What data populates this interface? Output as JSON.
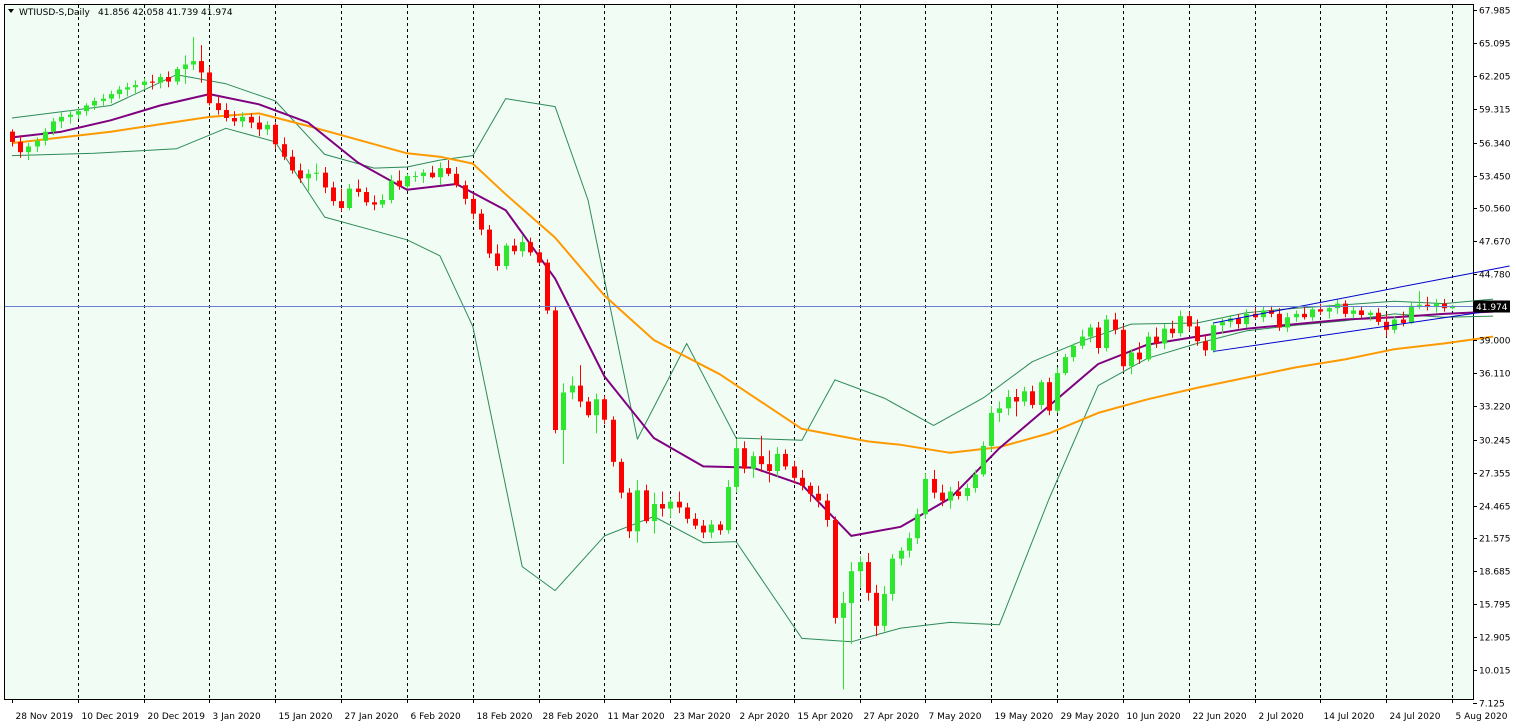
{
  "header": {
    "symbol": "WTIUSD-S,Daily",
    "ohlc": "41.856 42.058 41.739 41.974"
  },
  "colors": {
    "background": "#f0fcf4",
    "bull_candle": "#2ee62e",
    "bear_candle": "#ff0000",
    "ma_fast": "#800080",
    "ma_slow": "#ff9900",
    "bollinger": "#2e8b57",
    "trendline": "#0000cd",
    "price_line": "#6a7fd0",
    "price_label_bg": "#000000"
  },
  "chart_data": {
    "type": "candlestick",
    "symbol": "WTIUSD-S",
    "timeframe": "Daily",
    "last_price": "41.974",
    "ylim": [
      7.125,
      67.985
    ],
    "y_ticks": [
      "67.985",
      "65.095",
      "62.205",
      "59.315",
      "56.340",
      "53.450",
      "50.560",
      "47.670",
      "44.780",
      "41.974",
      "39.000",
      "36.110",
      "33.220",
      "30.245",
      "27.355",
      "24.465",
      "21.575",
      "18.685",
      "15.795",
      "12.905",
      "10.015",
      "7.125"
    ],
    "x_ticks": [
      "28 Nov 2019",
      "10 Dec 2019",
      "20 Dec 2019",
      "3 Jan 2020",
      "15 Jan 2020",
      "27 Jan 2020",
      "6 Feb 2020",
      "18 Feb 2020",
      "28 Feb 2020",
      "11 Mar 2020",
      "23 Mar 2020",
      "2 Apr 2020",
      "15 Apr 2020",
      "27 Apr 2020",
      "7 May 2020",
      "19 May 2020",
      "29 May 2020",
      "10 Jun 2020",
      "22 Jun 2020",
      "2 Jul 2020",
      "14 Jul 2020",
      "24 Jul 2020",
      "5 Aug 2020"
    ],
    "ohlc": [
      [
        57.3,
        57.5,
        56.0,
        56.4
      ],
      [
        56.4,
        57.0,
        55.0,
        55.5
      ],
      [
        55.5,
        56.3,
        54.8,
        56.0
      ],
      [
        56.0,
        56.8,
        55.5,
        56.5
      ],
      [
        56.5,
        57.6,
        56.1,
        57.3
      ],
      [
        57.3,
        58.5,
        57.0,
        58.2
      ],
      [
        58.2,
        59.0,
        57.6,
        58.6
      ],
      [
        58.6,
        59.2,
        58.0,
        58.8
      ],
      [
        58.8,
        59.4,
        58.4,
        59.1
      ],
      [
        59.1,
        59.8,
        58.7,
        59.6
      ],
      [
        59.6,
        60.3,
        59.2,
        60.0
      ],
      [
        60.0,
        60.6,
        59.5,
        60.2
      ],
      [
        60.2,
        60.9,
        59.8,
        60.6
      ],
      [
        60.6,
        61.3,
        60.2,
        61.0
      ],
      [
        61.0,
        61.6,
        60.4,
        61.2
      ],
      [
        61.2,
        61.8,
        60.6,
        61.4
      ],
      [
        61.4,
        62.0,
        61.0,
        61.7
      ],
      [
        61.7,
        62.3,
        61.0,
        61.6
      ],
      [
        61.6,
        62.4,
        61.1,
        62.1
      ],
      [
        62.1,
        62.6,
        61.2,
        61.7
      ],
      [
        61.7,
        63.0,
        61.4,
        62.8
      ],
      [
        62.8,
        64.0,
        61.5,
        63.2
      ],
      [
        63.2,
        65.6,
        62.7,
        63.5
      ],
      [
        63.5,
        64.9,
        61.6,
        62.5
      ],
      [
        62.5,
        63.0,
        59.6,
        59.8
      ],
      [
        59.8,
        60.4,
        58.8,
        59.2
      ],
      [
        59.2,
        59.8,
        58.2,
        58.5
      ],
      [
        58.5,
        59.1,
        57.8,
        58.2
      ],
      [
        58.2,
        59.0,
        57.7,
        58.6
      ],
      [
        58.6,
        58.9,
        57.6,
        58.1
      ],
      [
        58.1,
        58.7,
        56.9,
        57.5
      ],
      [
        57.5,
        58.2,
        57.0,
        57.9
      ],
      [
        57.9,
        58.1,
        55.8,
        56.2
      ],
      [
        56.2,
        56.8,
        54.8,
        55.1
      ],
      [
        55.1,
        55.7,
        53.6,
        53.9
      ],
      [
        53.9,
        54.5,
        52.8,
        53.2
      ],
      [
        53.2,
        54.0,
        52.1,
        53.6
      ],
      [
        53.6,
        54.5,
        53.0,
        53.7
      ],
      [
        53.7,
        54.2,
        51.9,
        52.4
      ],
      [
        52.4,
        52.9,
        50.8,
        51.2
      ],
      [
        51.2,
        52.3,
        50.3,
        50.6
      ],
      [
        50.6,
        52.7,
        50.4,
        52.3
      ],
      [
        52.3,
        53.1,
        51.6,
        52.0
      ],
      [
        52.0,
        52.4,
        50.8,
        51.1
      ],
      [
        51.1,
        51.7,
        50.4,
        50.9
      ],
      [
        50.9,
        51.8,
        50.6,
        51.3
      ],
      [
        51.3,
        53.5,
        51.0,
        53.0
      ],
      [
        53.0,
        53.9,
        52.2,
        52.5
      ],
      [
        52.5,
        53.6,
        52.3,
        53.4
      ],
      [
        53.4,
        53.8,
        52.9,
        53.4
      ],
      [
        53.4,
        54.0,
        52.8,
        53.7
      ],
      [
        53.7,
        54.3,
        53.2,
        53.3
      ],
      [
        53.3,
        54.6,
        52.6,
        54.1
      ],
      [
        54.1,
        54.8,
        53.4,
        53.6
      ],
      [
        53.6,
        54.2,
        52.4,
        52.6
      ],
      [
        52.6,
        53.0,
        50.9,
        51.4
      ],
      [
        51.4,
        51.8,
        49.6,
        50.1
      ],
      [
        50.1,
        50.5,
        48.2,
        48.7
      ],
      [
        48.7,
        49.1,
        46.2,
        46.6
      ],
      [
        46.6,
        47.4,
        45.1,
        45.5
      ],
      [
        45.5,
        47.5,
        45.2,
        47.3
      ],
      [
        47.3,
        47.9,
        46.5,
        46.8
      ],
      [
        46.8,
        48.2,
        46.3,
        47.6
      ],
      [
        47.6,
        48.0,
        46.4,
        46.7
      ],
      [
        46.7,
        47.0,
        45.6,
        45.8
      ],
      [
        45.8,
        46.1,
        41.3,
        41.6
      ],
      [
        41.6,
        42.0,
        30.8,
        31.1
      ],
      [
        31.1,
        35.2,
        28.1,
        34.4
      ],
      [
        34.4,
        35.8,
        33.8,
        35.0
      ],
      [
        35.0,
        36.8,
        33.1,
        33.6
      ],
      [
        33.6,
        34.0,
        32.2,
        32.4
      ],
      [
        32.4,
        34.3,
        30.8,
        33.8
      ],
      [
        33.8,
        34.1,
        31.6,
        32.0
      ],
      [
        32.0,
        32.3,
        27.9,
        28.3
      ],
      [
        28.3,
        28.6,
        25.1,
        25.6
      ],
      [
        25.6,
        26.0,
        21.6,
        22.2
      ],
      [
        22.2,
        26.7,
        21.2,
        25.8
      ],
      [
        25.8,
        26.3,
        22.9,
        23.1
      ],
      [
        23.1,
        25.6,
        22.0,
        24.6
      ],
      [
        24.6,
        25.7,
        23.5,
        24.2
      ],
      [
        24.2,
        25.1,
        23.4,
        24.8
      ],
      [
        24.8,
        25.7,
        23.8,
        24.3
      ],
      [
        24.3,
        24.7,
        22.9,
        23.3
      ],
      [
        23.3,
        23.8,
        22.4,
        22.7
      ],
      [
        22.7,
        23.2,
        21.6,
        22.1
      ],
      [
        22.1,
        23.2,
        21.6,
        22.8
      ],
      [
        22.8,
        23.1,
        21.9,
        22.3
      ],
      [
        22.3,
        26.7,
        22.0,
        26.1
      ],
      [
        26.1,
        30.3,
        25.6,
        29.5
      ],
      [
        29.5,
        30.1,
        27.3,
        27.7
      ],
      [
        27.7,
        29.2,
        26.9,
        28.8
      ],
      [
        28.8,
        30.6,
        27.4,
        28.1
      ],
      [
        28.1,
        29.3,
        26.5,
        27.5
      ],
      [
        27.5,
        29.6,
        27.0,
        29.0
      ],
      [
        29.0,
        29.4,
        27.6,
        27.9
      ],
      [
        27.9,
        28.4,
        26.4,
        26.9
      ],
      [
        26.9,
        27.6,
        25.8,
        26.2
      ],
      [
        26.2,
        26.5,
        24.8,
        25.5
      ],
      [
        25.5,
        26.2,
        24.3,
        24.9
      ],
      [
        24.9,
        25.5,
        22.6,
        23.2
      ],
      [
        23.2,
        23.5,
        14.1,
        14.6
      ],
      [
        14.6,
        16.9,
        8.3,
        15.9
      ],
      [
        15.9,
        19.5,
        12.3,
        18.7
      ],
      [
        18.7,
        20.0,
        17.2,
        19.5
      ],
      [
        19.5,
        20.3,
        16.1,
        16.8
      ],
      [
        16.8,
        17.5,
        13.0,
        13.9
      ],
      [
        13.9,
        17.4,
        13.4,
        16.7
      ],
      [
        16.7,
        20.2,
        16.1,
        19.8
      ],
      [
        19.8,
        20.8,
        19.2,
        20.5
      ],
      [
        20.5,
        22.1,
        19.9,
        21.6
      ],
      [
        21.6,
        24.2,
        21.1,
        23.7
      ],
      [
        23.7,
        27.3,
        23.3,
        26.8
      ],
      [
        26.8,
        27.6,
        25.1,
        25.6
      ],
      [
        25.6,
        26.3,
        24.4,
        24.9
      ],
      [
        24.9,
        26.1,
        24.2,
        25.7
      ],
      [
        25.7,
        26.6,
        25.0,
        25.3
      ],
      [
        25.3,
        26.4,
        24.9,
        26.0
      ],
      [
        26.0,
        27.6,
        25.6,
        27.2
      ],
      [
        27.2,
        30.1,
        27.0,
        29.7
      ],
      [
        29.7,
        33.2,
        29.2,
        32.6
      ],
      [
        32.6,
        33.6,
        31.8,
        33.0
      ],
      [
        33.0,
        34.6,
        32.4,
        34.0
      ],
      [
        34.0,
        34.7,
        32.3,
        33.6
      ],
      [
        33.6,
        34.9,
        33.2,
        34.5
      ],
      [
        34.5,
        35.0,
        33.0,
        33.3
      ],
      [
        33.3,
        35.5,
        32.9,
        35.3
      ],
      [
        35.3,
        35.7,
        32.4,
        32.8
      ],
      [
        32.8,
        36.6,
        32.6,
        36.1
      ],
      [
        36.1,
        37.8,
        35.9,
        37.5
      ],
      [
        37.5,
        38.7,
        37.1,
        38.5
      ],
      [
        38.5,
        39.9,
        38.2,
        39.3
      ],
      [
        39.3,
        40.4,
        38.8,
        40.1
      ],
      [
        40.1,
        40.6,
        37.8,
        38.3
      ],
      [
        38.3,
        41.2,
        38.0,
        40.8
      ],
      [
        40.8,
        41.4,
        39.5,
        39.9
      ],
      [
        39.9,
        40.3,
        36.3,
        36.7
      ],
      [
        36.7,
        38.2,
        36.0,
        37.9
      ],
      [
        37.9,
        38.8,
        36.9,
        37.3
      ],
      [
        37.3,
        39.7,
        37.1,
        39.3
      ],
      [
        39.3,
        40.1,
        38.3,
        38.7
      ],
      [
        38.7,
        40.4,
        38.2,
        40.0
      ],
      [
        40.0,
        40.7,
        39.2,
        39.6
      ],
      [
        39.6,
        41.6,
        39.3,
        41.1
      ],
      [
        41.1,
        41.5,
        39.8,
        40.2
      ],
      [
        40.2,
        40.8,
        38.5,
        38.9
      ],
      [
        38.9,
        39.5,
        37.6,
        38.1
      ],
      [
        38.1,
        40.6,
        37.9,
        40.3
      ],
      [
        40.3,
        41.0,
        39.6,
        40.6
      ],
      [
        40.6,
        41.2,
        40.1,
        40.9
      ],
      [
        40.9,
        41.3,
        40.0,
        40.4
      ],
      [
        40.4,
        41.7,
        40.1,
        41.3
      ],
      [
        41.3,
        41.8,
        40.8,
        41.0
      ],
      [
        41.0,
        41.9,
        40.6,
        41.6
      ],
      [
        41.6,
        42.0,
        41.0,
        41.3
      ],
      [
        41.3,
        41.8,
        39.8,
        40.1
      ],
      [
        40.1,
        41.4,
        39.7,
        41.0
      ],
      [
        41.0,
        41.6,
        40.6,
        41.3
      ],
      [
        41.3,
        41.9,
        40.8,
        41.0
      ],
      [
        41.0,
        42.0,
        40.7,
        41.7
      ],
      [
        41.7,
        42.2,
        41.2,
        41.5
      ],
      [
        41.5,
        42.1,
        40.9,
        41.8
      ],
      [
        41.8,
        42.6,
        41.3,
        42.2
      ],
      [
        42.2,
        42.5,
        41.0,
        41.3
      ],
      [
        41.3,
        41.9,
        40.9,
        41.6
      ],
      [
        41.6,
        41.9,
        40.9,
        41.2
      ],
      [
        41.2,
        41.6,
        40.7,
        41.4
      ],
      [
        41.4,
        41.8,
        40.3,
        40.6
      ],
      [
        40.6,
        41.3,
        39.3,
        39.9
      ],
      [
        39.9,
        41.1,
        39.6,
        40.8
      ],
      [
        40.8,
        41.5,
        40.2,
        40.5
      ],
      [
        40.5,
        42.3,
        40.4,
        42.0
      ],
      [
        42.0,
        43.3,
        41.7,
        42.1
      ],
      [
        42.1,
        42.8,
        41.6,
        41.9
      ],
      [
        41.9,
        42.6,
        41.4,
        42.2
      ],
      [
        42.2,
        42.6,
        41.5,
        41.8
      ],
      [
        41.8,
        42.1,
        41.7,
        41.97
      ]
    ],
    "indicators": [
      {
        "id": "ma_fast",
        "x": [
          0,
          6,
          12,
          18,
          24,
          30,
          36,
          42,
          48,
          54,
          60,
          66,
          72,
          78,
          84,
          90,
          96,
          102,
          108,
          114,
          120,
          126,
          132,
          138,
          144,
          150,
          156,
          162,
          168,
          174,
          180
        ],
        "y": [
          56.8,
          57.3,
          58.3,
          59.6,
          60.6,
          59.7,
          58.1,
          54.6,
          52.2,
          52.7,
          50.4,
          44.4,
          35.8,
          30.4,
          27.9,
          27.8,
          26.3,
          21.8,
          22.6,
          25.1,
          29.5,
          33.2,
          36.9,
          38.6,
          39.3,
          40.0,
          40.4,
          40.8,
          41.0,
          41.3,
          41.5
        ]
      },
      {
        "id": "ma_slow",
        "x": [
          0,
          12,
          24,
          30,
          36,
          44,
          48,
          52,
          56,
          60,
          66,
          72,
          78,
          86,
          96,
          104,
          108,
          114,
          120,
          126,
          132,
          138,
          144,
          150,
          156,
          162,
          168,
          174,
          180
        ],
        "y": [
          56.3,
          57.3,
          58.6,
          58.9,
          57.8,
          56.2,
          55.4,
          55.1,
          54.5,
          51.8,
          48.0,
          42.9,
          39.0,
          36.0,
          31.2,
          30.1,
          29.8,
          29.1,
          29.6,
          30.8,
          32.6,
          33.8,
          34.8,
          35.7,
          36.6,
          37.3,
          38.2,
          38.7,
          39.3
        ]
      },
      {
        "id": "bb_upper",
        "x": [
          0,
          12,
          20,
          26,
          32,
          38,
          44,
          48,
          52,
          56,
          60,
          66,
          70,
          76,
          82,
          88,
          96,
          100,
          106,
          112,
          118,
          124,
          130,
          136,
          144,
          150,
          156,
          162,
          168,
          174,
          180
        ],
        "y": [
          58.5,
          59.6,
          62.3,
          61.5,
          60.0,
          55.3,
          54.1,
          54.2,
          54.8,
          55.2,
          60.2,
          59.5,
          51.3,
          30.3,
          38.7,
          30.4,
          30.2,
          35.5,
          33.9,
          31.5,
          33.9,
          37.1,
          38.9,
          40.4,
          40.5,
          41.4,
          41.8,
          42.1,
          42.4,
          42.2,
          42.6
        ]
      },
      {
        "id": "bb_lower",
        "x": [
          0,
          10,
          20,
          26,
          32,
          38,
          44,
          48,
          52,
          56,
          62,
          66,
          72,
          78,
          84,
          88,
          96,
          102,
          108,
          114,
          120,
          126,
          132,
          138,
          144,
          150,
          156,
          162,
          168,
          174,
          180
        ],
        "y": [
          55.2,
          55.4,
          55.8,
          57.6,
          56.4,
          49.8,
          48.6,
          47.8,
          46.4,
          40.2,
          19.1,
          17.0,
          21.8,
          23.5,
          21.2,
          21.3,
          12.8,
          12.5,
          13.7,
          14.2,
          14.0,
          25.0,
          35.0,
          37.4,
          38.7,
          39.8,
          40.3,
          40.7,
          41.3,
          41.0,
          41.1
        ]
      },
      {
        "id": "trendline_upper",
        "x": [
          146,
          182
        ],
        "y": [
          40.5,
          45.5
        ]
      },
      {
        "id": "trendline_lower",
        "x": [
          146,
          182
        ],
        "y": [
          38.0,
          41.8
        ]
      }
    ],
    "grid": true
  }
}
